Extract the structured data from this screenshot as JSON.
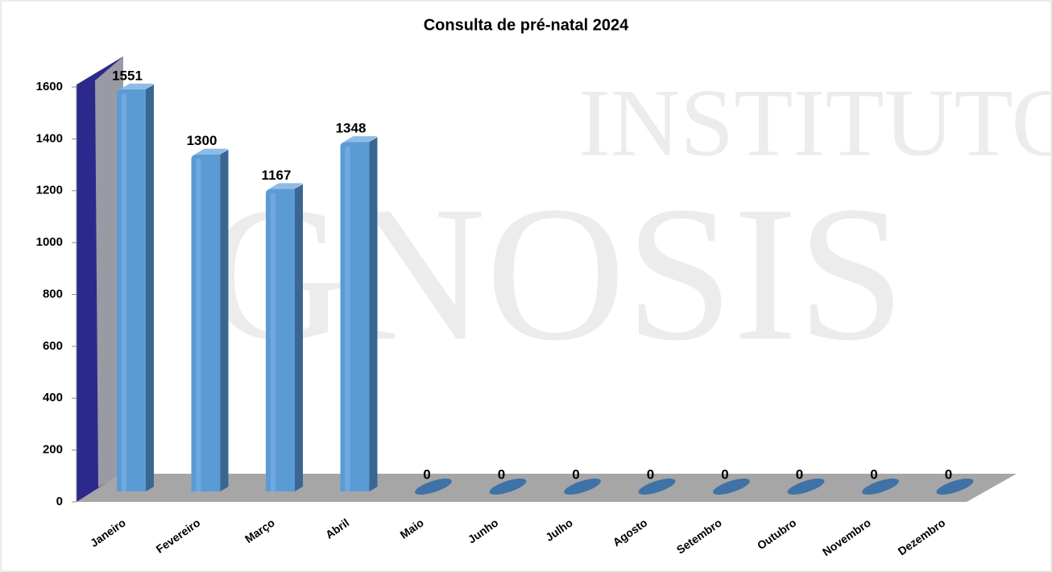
{
  "chart_data": {
    "type": "bar3d",
    "title": "Consulta de pré-natal 2024",
    "categories": [
      "Janeiro",
      "Fevereiro",
      "Março",
      "Abril",
      "Maio",
      "Junho",
      "Julho",
      "Agosto",
      "Setembro",
      "Outubro",
      "Novembro",
      "Dezembro"
    ],
    "values": [
      1551,
      1300,
      1167,
      1348,
      0,
      0,
      0,
      0,
      0,
      0,
      0,
      0
    ],
    "color": "#5b9bd5",
    "ylim": [
      0,
      1600
    ],
    "yticks": [
      0,
      200,
      400,
      600,
      800,
      1000,
      1200,
      1400,
      1600
    ],
    "watermark": [
      "INSTITUTO",
      "GNOSIS"
    ]
  }
}
